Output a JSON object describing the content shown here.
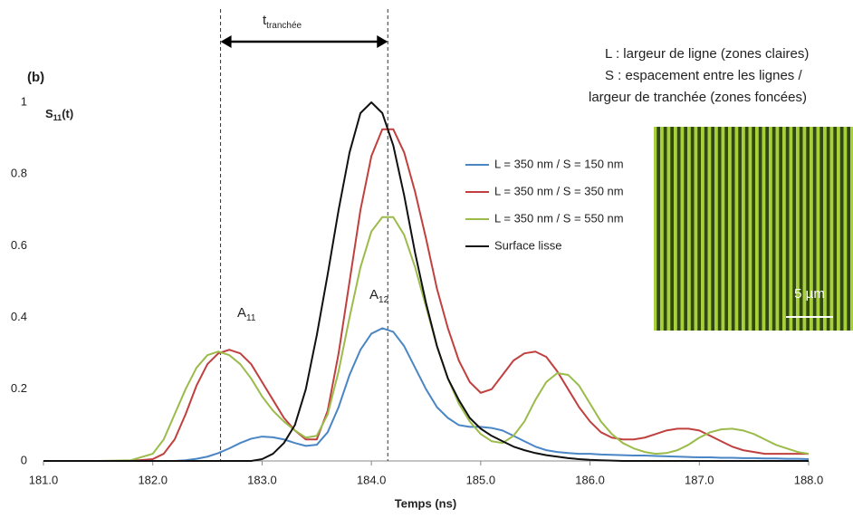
{
  "chart_data": {
    "type": "line",
    "title": "(b)",
    "y_label": {
      "base": "S",
      "sub": "11",
      "tail": "(t)"
    },
    "x_label": "Temps (ns)",
    "xlim": [
      181,
      188
    ],
    "ylim": [
      0,
      1
    ],
    "xticks": [
      {
        "value": 181,
        "label": "181.0"
      },
      {
        "value": 182,
        "label": "182.0"
      },
      {
        "value": 183,
        "label": "183.0"
      },
      {
        "value": 184,
        "label": "184.0"
      },
      {
        "value": 185,
        "label": "185.0"
      },
      {
        "value": 186,
        "label": "186.0"
      },
      {
        "value": 187,
        "label": "187.0"
      },
      {
        "value": 188,
        "label": "188.0"
      }
    ],
    "yticks": [
      0,
      0.2,
      0.4,
      0.6,
      0.8,
      1
    ],
    "grid": false,
    "legend": "upper right",
    "annotations": {
      "peak_a": {
        "base": "A",
        "sub": "11"
      },
      "peak_b": {
        "base": "A",
        "sub": "12"
      },
      "interval": {
        "label": {
          "base": "t",
          "sub": "tranchée"
        },
        "x": [
          182.62,
          184.15
        ]
      },
      "notes": [
        "L : largeur de ligne (zones claires)",
        "S : espacement entre les lignes /",
        "largeur de tranchée (zones foncées)"
      ],
      "scale_bar": "5 µm"
    },
    "x": [
      181.0,
      181.5,
      181.8,
      182.0,
      182.1,
      182.2,
      182.3,
      182.4,
      182.5,
      182.6,
      182.7,
      182.8,
      182.9,
      183.0,
      183.1,
      183.2,
      183.3,
      183.4,
      183.5,
      183.6,
      183.7,
      183.8,
      183.9,
      184.0,
      184.1,
      184.2,
      184.3,
      184.4,
      184.5,
      184.6,
      184.7,
      184.8,
      184.9,
      185.0,
      185.1,
      185.2,
      185.3,
      185.4,
      185.5,
      185.6,
      185.7,
      185.8,
      185.9,
      186.0,
      186.1,
      186.2,
      186.3,
      186.4,
      186.5,
      186.6,
      186.7,
      186.8,
      186.9,
      187.0,
      187.1,
      187.2,
      187.3,
      187.4,
      187.5,
      187.6,
      187.7,
      187.8,
      187.9,
      188.0
    ],
    "series": [
      {
        "name": "L = 350 nm / S = 150 nm",
        "color": "#4a86c5",
        "values": [
          0,
          0,
          0,
          0,
          0,
          0,
          0.002,
          0.006,
          0.012,
          0.022,
          0.035,
          0.05,
          0.062,
          0.068,
          0.066,
          0.06,
          0.05,
          0.042,
          0.045,
          0.08,
          0.15,
          0.24,
          0.31,
          0.355,
          0.37,
          0.36,
          0.32,
          0.26,
          0.2,
          0.15,
          0.12,
          0.1,
          0.095,
          0.095,
          0.092,
          0.085,
          0.07,
          0.055,
          0.04,
          0.03,
          0.025,
          0.022,
          0.02,
          0.02,
          0.018,
          0.017,
          0.016,
          0.015,
          0.015,
          0.014,
          0.013,
          0.012,
          0.011,
          0.01,
          0.01,
          0.009,
          0.009,
          0.008,
          0.008,
          0.007,
          0.007,
          0.006,
          0.006,
          0.005
        ]
      },
      {
        "name": "L = 350 nm / S = 350 nm",
        "color": "#c0403f",
        "values": [
          0,
          0,
          0,
          0.005,
          0.02,
          0.06,
          0.13,
          0.21,
          0.27,
          0.3,
          0.31,
          0.3,
          0.27,
          0.22,
          0.17,
          0.12,
          0.085,
          0.06,
          0.06,
          0.14,
          0.3,
          0.5,
          0.7,
          0.85,
          0.925,
          0.925,
          0.86,
          0.75,
          0.62,
          0.48,
          0.37,
          0.28,
          0.22,
          0.19,
          0.2,
          0.24,
          0.28,
          0.3,
          0.305,
          0.29,
          0.25,
          0.2,
          0.15,
          0.11,
          0.08,
          0.065,
          0.06,
          0.06,
          0.065,
          0.075,
          0.085,
          0.09,
          0.09,
          0.085,
          0.07,
          0.055,
          0.04,
          0.03,
          0.025,
          0.02,
          0.02,
          0.02,
          0.02,
          0.02
        ]
      },
      {
        "name": "L = 350 nm / S = 550 nm",
        "color": "#9bbb4a",
        "values": [
          0,
          0,
          0.002,
          0.02,
          0.06,
          0.13,
          0.2,
          0.26,
          0.295,
          0.305,
          0.295,
          0.27,
          0.23,
          0.18,
          0.14,
          0.11,
          0.085,
          0.065,
          0.07,
          0.13,
          0.25,
          0.4,
          0.54,
          0.64,
          0.68,
          0.68,
          0.63,
          0.54,
          0.43,
          0.32,
          0.23,
          0.16,
          0.11,
          0.075,
          0.055,
          0.05,
          0.07,
          0.11,
          0.17,
          0.22,
          0.245,
          0.24,
          0.21,
          0.16,
          0.11,
          0.075,
          0.05,
          0.035,
          0.025,
          0.02,
          0.022,
          0.03,
          0.045,
          0.065,
          0.08,
          0.088,
          0.09,
          0.085,
          0.075,
          0.06,
          0.045,
          0.035,
          0.025,
          0.02
        ]
      },
      {
        "name": "Surface lisse",
        "color": "#111111",
        "values": [
          0,
          0,
          0,
          0,
          0,
          0,
          0,
          0,
          0,
          0,
          0,
          0,
          0,
          0.005,
          0.02,
          0.05,
          0.1,
          0.2,
          0.35,
          0.52,
          0.7,
          0.86,
          0.97,
          1.0,
          0.97,
          0.88,
          0.74,
          0.58,
          0.44,
          0.32,
          0.23,
          0.17,
          0.12,
          0.09,
          0.07,
          0.055,
          0.04,
          0.03,
          0.022,
          0.016,
          0.012,
          0.008,
          0.005,
          0.003,
          0.002,
          0.001,
          0,
          0,
          0,
          0,
          0,
          0,
          0,
          0,
          0,
          0,
          0,
          0,
          0,
          0,
          0,
          0,
          0,
          0
        ]
      }
    ]
  }
}
